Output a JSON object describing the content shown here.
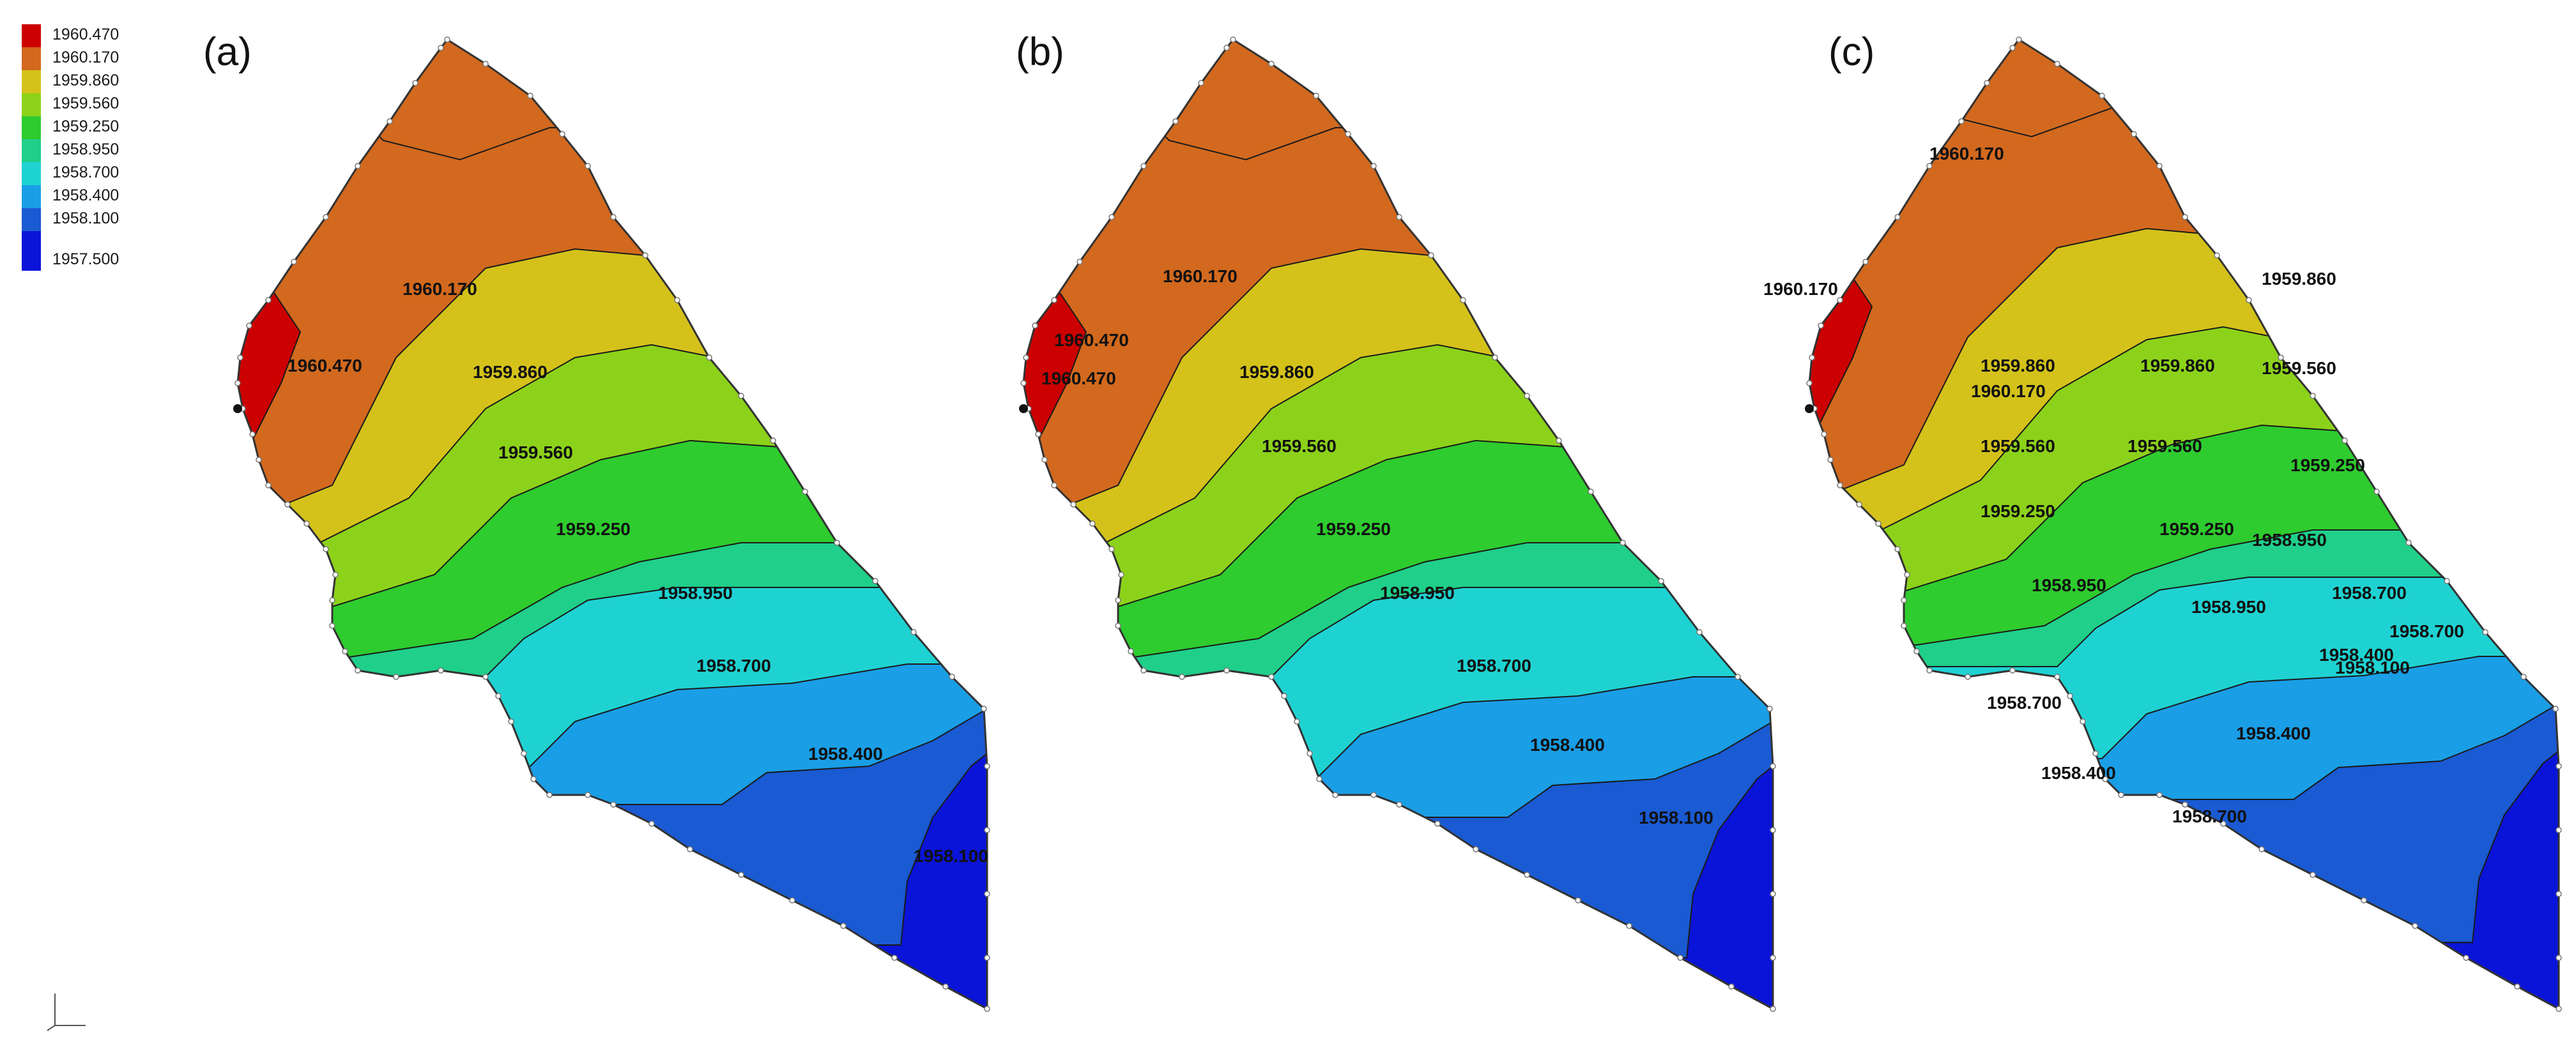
{
  "legend": {
    "entries": [
      {
        "label": "1960.470",
        "color": "#cc0000"
      },
      {
        "label": "1960.170",
        "color": "#d2691e"
      },
      {
        "label": "1959.860",
        "color": "#d4c21a"
      },
      {
        "label": "1959.560",
        "color": "#8dd21a"
      },
      {
        "label": "1959.250",
        "color": "#2ecc2e"
      },
      {
        "label": "1958.950",
        "color": "#1fcf8a"
      },
      {
        "label": "1958.700",
        "color": "#1fd2d2"
      },
      {
        "label": "1958.400",
        "color": "#1a9ee6"
      },
      {
        "label": "1958.100",
        "color": "#1a5ad2"
      },
      {
        "label": "1957.500",
        "color": "#0a14d8"
      }
    ]
  },
  "panels": [
    {
      "label": "(a)",
      "contours": [
        {
          "text": "1960.470",
          "color_index": 0
        },
        {
          "text": "1960.170",
          "color_index": 1
        },
        {
          "text": "1959.860",
          "color_index": 2
        },
        {
          "text": "1959.560",
          "color_index": 3
        },
        {
          "text": "1959.250",
          "color_index": 4
        },
        {
          "text": "1958.950",
          "color_index": 5
        },
        {
          "text": "1958.700",
          "color_index": 6
        },
        {
          "text": "1958.400",
          "color_index": 7
        },
        {
          "text": "1958.100",
          "color_index": 8
        }
      ]
    },
    {
      "label": "(b)",
      "contours": [
        {
          "text": "1960.470",
          "color_index": 0
        },
        {
          "text": "1960.470",
          "color_index": 0
        },
        {
          "text": "1960.170",
          "color_index": 1
        },
        {
          "text": "1959.860",
          "color_index": 2
        },
        {
          "text": "1959.560",
          "color_index": 3
        },
        {
          "text": "1959.250",
          "color_index": 4
        },
        {
          "text": "1958.950",
          "color_index": 5
        },
        {
          "text": "1958.700",
          "color_index": 6
        },
        {
          "text": "1958.400",
          "color_index": 7
        },
        {
          "text": "1958.100",
          "color_index": 8
        }
      ]
    },
    {
      "label": "(c)",
      "contours": [
        {
          "text": "1960.170",
          "color_index": 1
        },
        {
          "text": "1960.170",
          "color_index": 1
        },
        {
          "text": "1960.170",
          "color_index": 1
        },
        {
          "text": "1959.860",
          "color_index": 2
        },
        {
          "text": "1959.860",
          "color_index": 2
        },
        {
          "text": "1959.860",
          "color_index": 2
        },
        {
          "text": "1959.560",
          "color_index": 3
        },
        {
          "text": "1959.560",
          "color_index": 3
        },
        {
          "text": "1959.560",
          "color_index": 3
        },
        {
          "text": "1959.250",
          "color_index": 4
        },
        {
          "text": "1959.250",
          "color_index": 4
        },
        {
          "text": "1959.250",
          "color_index": 4
        },
        {
          "text": "1958.950",
          "color_index": 5
        },
        {
          "text": "1958.950",
          "color_index": 5
        },
        {
          "text": "1958.950",
          "color_index": 5
        },
        {
          "text": "1958.700",
          "color_index": 6
        },
        {
          "text": "1958.700",
          "color_index": 6
        },
        {
          "text": "1958.700",
          "color_index": 6
        },
        {
          "text": "1958.400",
          "color_index": 7
        },
        {
          "text": "1958.400",
          "color_index": 7
        },
        {
          "text": "1958.400",
          "color_index": 7
        },
        {
          "text": "1958.100",
          "color_index": 8
        },
        {
          "text": "1958.700",
          "color_index": 6
        }
      ]
    }
  ]
}
